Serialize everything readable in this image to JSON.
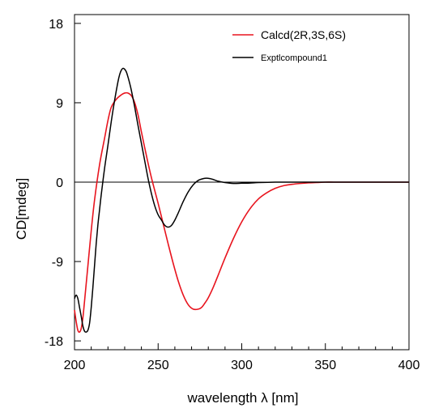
{
  "chart_data": {
    "type": "line",
    "xlabel": "wavelength λ [nm]",
    "ylabel": "CD[mdeg]",
    "xlim": [
      200,
      400
    ],
    "ylim": [
      -19,
      19
    ],
    "x_ticks": [
      200,
      250,
      300,
      350,
      400
    ],
    "y_ticks": [
      -18,
      -9,
      0,
      9,
      18
    ],
    "x_tick_labels": [
      "200",
      "250",
      "300",
      "350",
      "400"
    ],
    "y_tick_labels": [
      "-18",
      "-9",
      "0",
      "9",
      "18"
    ],
    "zero_line": true,
    "grid": false,
    "legend": "top-right",
    "series": [
      {
        "name": "Calcd(2R,3S,6S)",
        "color": "#e8141e",
        "x": [
          200,
          201,
          202,
          203,
          204,
          205,
          206,
          208,
          210,
          212,
          215,
          218,
          220,
          222,
          225,
          228,
          230,
          232,
          234,
          236,
          238,
          240,
          243,
          246,
          250,
          253,
          256,
          259,
          262,
          265,
          268,
          271,
          274,
          276,
          278,
          280,
          283,
          286,
          290,
          295,
          300,
          305,
          310,
          315,
          320,
          325,
          330,
          335,
          340,
          345,
          350,
          355,
          360,
          370,
          380,
          390,
          400
        ],
        "y": [
          -14.5,
          -15.8,
          -16.8,
          -17.0,
          -16.6,
          -15.4,
          -13.5,
          -9.5,
          -5.5,
          -2.0,
          2.0,
          5.0,
          7.0,
          8.5,
          9.4,
          9.9,
          10.1,
          10.1,
          9.8,
          9.0,
          7.6,
          5.7,
          3.0,
          0.5,
          -2.4,
          -4.7,
          -7.0,
          -9.2,
          -11.2,
          -12.8,
          -13.9,
          -14.4,
          -14.4,
          -14.2,
          -13.7,
          -13.1,
          -11.9,
          -10.5,
          -8.6,
          -6.4,
          -4.5,
          -3.0,
          -1.9,
          -1.2,
          -0.7,
          -0.4,
          -0.25,
          -0.15,
          -0.08,
          -0.04,
          0.0,
          0.0,
          0.0,
          0.0,
          0.0,
          0.0,
          0.0
        ]
      },
      {
        "name": "Exptlcompound1",
        "color": "#000000",
        "x": [
          200,
          201,
          202,
          203,
          204,
          205,
          206,
          207,
          208,
          209,
          210,
          211,
          212,
          213,
          214,
          215,
          216,
          218,
          220,
          222,
          224,
          226,
          227,
          228,
          229,
          230,
          231,
          232,
          233,
          234,
          236,
          238,
          240,
          242,
          244,
          246,
          248,
          250,
          252,
          254,
          256,
          258,
          260,
          262,
          265,
          268,
          271,
          274,
          277,
          279,
          281,
          283,
          286,
          290,
          295,
          300,
          305,
          310,
          320,
          330,
          340,
          350,
          360,
          370,
          380,
          390,
          400
        ],
        "y": [
          -13.2,
          -12.8,
          -13.2,
          -14.2,
          -15.2,
          -16.3,
          -16.9,
          -17.0,
          -16.8,
          -16.0,
          -14.2,
          -11.9,
          -9.4,
          -6.9,
          -4.8,
          -3.1,
          -1.4,
          1.6,
          4.2,
          6.9,
          9.3,
          11.4,
          12.2,
          12.7,
          12.9,
          12.8,
          12.5,
          11.9,
          11.2,
          10.4,
          8.5,
          6.4,
          4.4,
          2.4,
          0.4,
          -1.3,
          -2.7,
          -3.7,
          -4.3,
          -4.9,
          -5.1,
          -4.9,
          -4.3,
          -3.5,
          -2.2,
          -1.1,
          -0.3,
          0.2,
          0.4,
          0.45,
          0.4,
          0.3,
          0.1,
          -0.05,
          -0.15,
          -0.12,
          -0.1,
          -0.05,
          0.0,
          0.0,
          0.0,
          0.0,
          0.0,
          0.0,
          0.0,
          0.0,
          0.0
        ]
      }
    ]
  }
}
